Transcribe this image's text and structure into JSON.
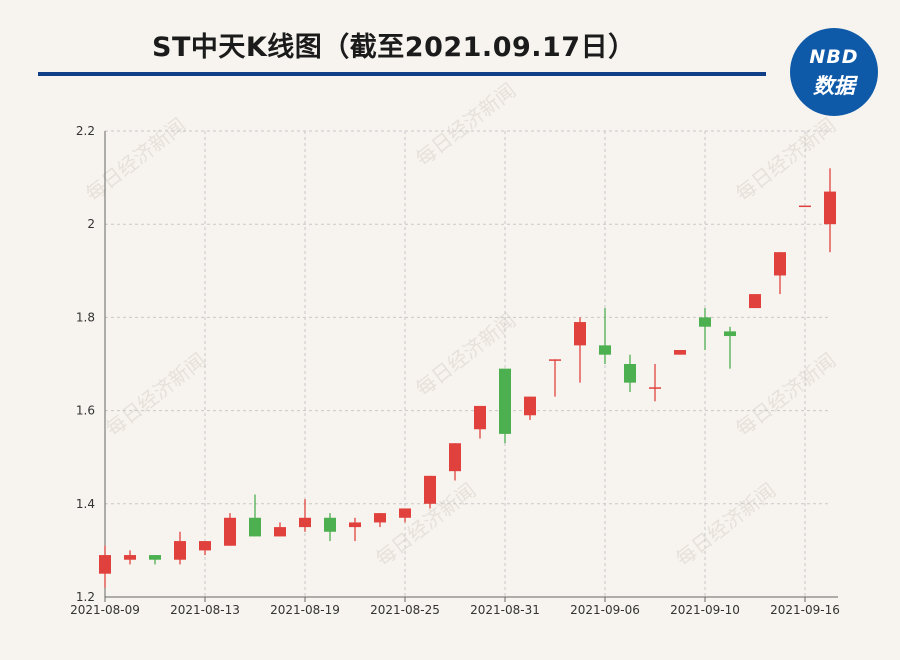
{
  "title": "ST中天K线图（截至2021.09.17日）",
  "logo": {
    "line1": "NBD",
    "line2": "数据"
  },
  "watermark": "每日经济新闻",
  "colors": {
    "up": "#e0413d",
    "down": "#4caf50",
    "rule": "#0f3f86",
    "logo": "#0f5aa8"
  },
  "chart_data": {
    "type": "candlestick",
    "ylim": [
      1.2,
      2.2
    ],
    "yticks": [
      1.2,
      1.4,
      1.6,
      1.8,
      2,
      2.2
    ],
    "x_tick_labels": [
      "2021-08-09",
      "2021-08-13",
      "2021-08-19",
      "2021-08-25",
      "2021-08-31",
      "2021-09-06",
      "2021-09-10",
      "2021-09-16"
    ],
    "grid": true,
    "candles": [
      {
        "open": 1.25,
        "close": 1.29,
        "high": 1.31,
        "low": 1.22
      },
      {
        "open": 1.28,
        "close": 1.29,
        "high": 1.3,
        "low": 1.27
      },
      {
        "open": 1.29,
        "close": 1.28,
        "high": 1.29,
        "low": 1.27
      },
      {
        "open": 1.28,
        "close": 1.32,
        "high": 1.34,
        "low": 1.27
      },
      {
        "open": 1.3,
        "close": 1.32,
        "high": 1.32,
        "low": 1.29
      },
      {
        "open": 1.31,
        "close": 1.37,
        "high": 1.38,
        "low": 1.31
      },
      {
        "open": 1.37,
        "close": 1.33,
        "high": 1.42,
        "low": 1.33
      },
      {
        "open": 1.33,
        "close": 1.35,
        "high": 1.36,
        "low": 1.33
      },
      {
        "open": 1.35,
        "close": 1.37,
        "high": 1.41,
        "low": 1.34
      },
      {
        "open": 1.37,
        "close": 1.34,
        "high": 1.38,
        "low": 1.32
      },
      {
        "open": 1.35,
        "close": 1.36,
        "high": 1.37,
        "low": 1.32
      },
      {
        "open": 1.36,
        "close": 1.38,
        "high": 1.38,
        "low": 1.35
      },
      {
        "open": 1.37,
        "close": 1.39,
        "high": 1.39,
        "low": 1.36
      },
      {
        "open": 1.4,
        "close": 1.46,
        "high": 1.46,
        "low": 1.39
      },
      {
        "open": 1.47,
        "close": 1.53,
        "high": 1.53,
        "low": 1.45
      },
      {
        "open": 1.56,
        "close": 1.61,
        "high": 1.61,
        "low": 1.54
      },
      {
        "open": 1.69,
        "close": 1.55,
        "high": 1.69,
        "low": 1.53
      },
      {
        "open": 1.59,
        "close": 1.63,
        "high": 1.63,
        "low": 1.58
      },
      {
        "open": 1.71,
        "close": 1.71,
        "high": 1.71,
        "low": 1.63
      },
      {
        "open": 1.74,
        "close": 1.79,
        "high": 1.8,
        "low": 1.66
      },
      {
        "open": 1.74,
        "close": 1.72,
        "high": 1.82,
        "low": 1.7
      },
      {
        "open": 1.7,
        "close": 1.66,
        "high": 1.72,
        "low": 1.64
      },
      {
        "open": 1.65,
        "close": 1.65,
        "high": 1.7,
        "low": 1.62
      },
      {
        "open": 1.72,
        "close": 1.73,
        "high": 1.73,
        "low": 1.72
      },
      {
        "open": 1.8,
        "close": 1.78,
        "high": 1.82,
        "low": 1.73
      },
      {
        "open": 1.77,
        "close": 1.76,
        "high": 1.78,
        "low": 1.69
      },
      {
        "open": 1.82,
        "close": 1.85,
        "high": 1.85,
        "low": 1.82
      },
      {
        "open": 1.89,
        "close": 1.94,
        "high": 1.94,
        "low": 1.85
      },
      {
        "open": 2.04,
        "close": 2.04,
        "high": 2.04,
        "low": 2.04
      },
      {
        "open": 2.0,
        "close": 2.07,
        "high": 2.12,
        "low": 1.94
      }
    ]
  }
}
